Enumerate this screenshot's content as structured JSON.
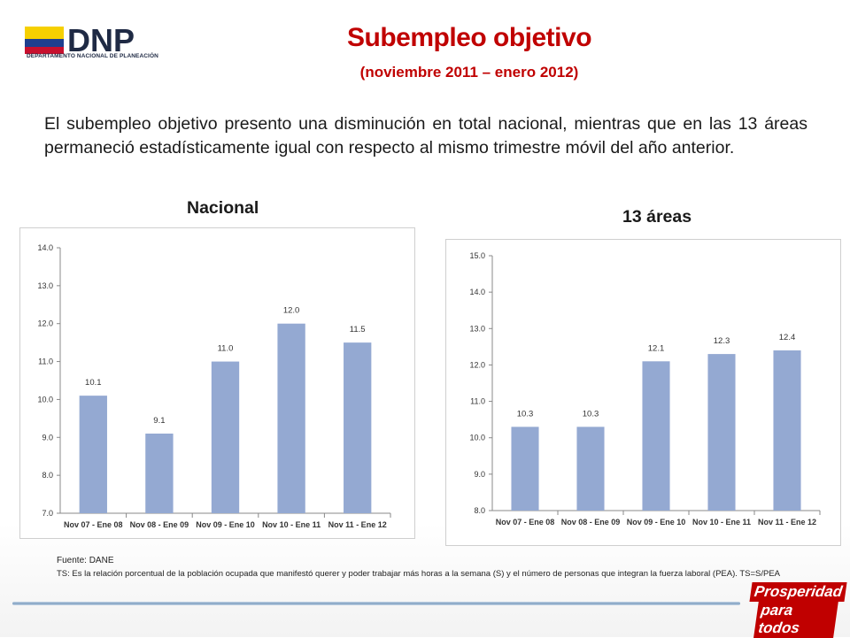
{
  "header": {
    "logo_word": "DNP",
    "logo_caption": "DEPARTAMENTO NACIONAL DE PLANEACIÓN",
    "title": "Subempleo objetivo",
    "subtitle": "(noviembre 2011 – enero 2012)"
  },
  "body_text": "El subempleo objetivo presento una disminución en total nacional, mientras que en las 13 áreas permaneció estadísticamente igual con respecto al mismo trimestre móvil del año anterior.",
  "colors": {
    "title": "#c00000",
    "bar": "#94a9d2",
    "axis": "#888888"
  },
  "chart_data": [
    {
      "type": "bar",
      "title": "Nacional",
      "categories": [
        "Nov 07 - Ene 08",
        "Nov 08 - Ene 09",
        "Nov 09 - Ene 10",
        "Nov 10 - Ene 11",
        "Nov 11 - Ene 12"
      ],
      "values": [
        10.1,
        9.1,
        11.0,
        12.0,
        11.5
      ],
      "value_labels": [
        "10.1",
        "9.1",
        "11.0",
        "12.0",
        "11.5"
      ],
      "ylim": [
        7.0,
        14.0
      ],
      "yticks": [
        "7.0",
        "8.0",
        "9.0",
        "10.0",
        "11.0",
        "12.0",
        "13.0",
        "14.0"
      ],
      "grid": false
    },
    {
      "type": "bar",
      "title": "13 áreas",
      "categories": [
        "Nov 07 - Ene 08",
        "Nov 08 - Ene 09",
        "Nov 09 - Ene 10",
        "Nov 10 - Ene 11",
        "Nov 11 - Ene 12"
      ],
      "values": [
        10.3,
        10.3,
        12.1,
        12.3,
        12.4
      ],
      "value_labels": [
        "10.3",
        "10.3",
        "12.1",
        "12.3",
        "12.4"
      ],
      "ylim": [
        8.0,
        15.0
      ],
      "yticks": [
        "8.0",
        "9.0",
        "10.0",
        "11.0",
        "12.0",
        "13.0",
        "14.0",
        "15.0"
      ],
      "grid": false
    }
  ],
  "footer": {
    "source_label": "Fuente:",
    "source_value": "DANE",
    "note": "TS:  Es la relación porcentual de la población ocupada que manifestó querer y poder trabajar más horas a la semana (S) y el número de personas que integran la fuerza laboral (PEA). TS=S/PEA",
    "badge_line1": "Prosperidad",
    "badge_line2": "para todos"
  }
}
